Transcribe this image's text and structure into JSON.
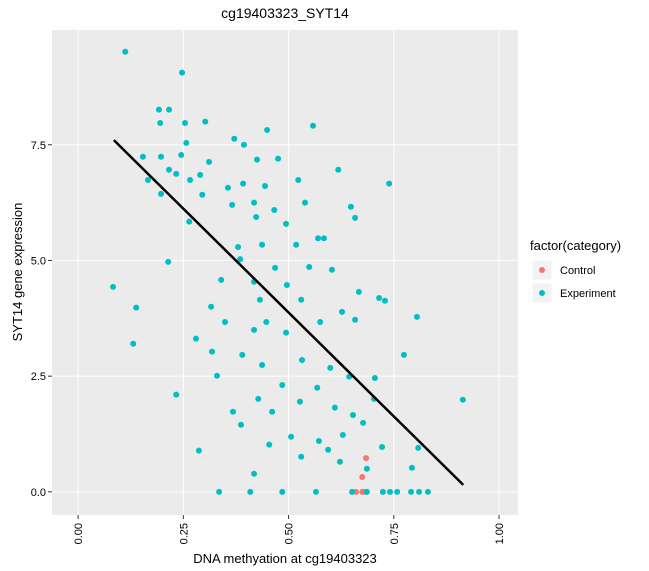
{
  "chart_data": {
    "type": "scatter",
    "title": "cg19403323_SYT14",
    "x_label": "DNA methyation at cg19403323",
    "y_label": "SYT14 gene expression",
    "xlim": [
      -0.062,
      1.045
    ],
    "ylim": [
      -0.5,
      9.98
    ],
    "xticks": [
      {
        "value": 0,
        "label": "0.00"
      },
      {
        "value": 0.25,
        "label": "0.25"
      },
      {
        "value": 0.5,
        "label": "0.50"
      },
      {
        "value": 0.75,
        "label": "0.75"
      },
      {
        "value": 1,
        "label": "1.00"
      }
    ],
    "yticks": [
      {
        "value": 0,
        "label": "0.0"
      },
      {
        "value": 2.5,
        "label": "2.5"
      },
      {
        "value": 5,
        "label": "5.0"
      },
      {
        "value": 7.5,
        "label": "7.5"
      }
    ],
    "grid": true,
    "legend_title": "factor(category)",
    "legend_position": "right",
    "series": [
      {
        "name": "Control",
        "color": "#F8766D",
        "x": [
          0.684,
          0.675,
          0.66,
          0.675,
          0.682
        ],
        "y": [
          0.73,
          0.32,
          0,
          0,
          0
        ]
      },
      {
        "name": "Experiment",
        "color": "#00BFC4",
        "x": [
          0.112,
          0.247,
          0.192,
          0.216,
          0.254,
          0.195,
          0.302,
          0.371,
          0.449,
          0.558,
          0.257,
          0.394,
          0.154,
          0.245,
          0.197,
          0.311,
          0.425,
          0.475,
          0.216,
          0.233,
          0.166,
          0.266,
          0.29,
          0.356,
          0.392,
          0.444,
          0.523,
          0.618,
          0.739,
          0.197,
          0.295,
          0.366,
          0.418,
          0.466,
          0.539,
          0.648,
          0.264,
          0.423,
          0.494,
          0.57,
          0.658,
          0.38,
          0.437,
          0.518,
          0.584,
          0.214,
          0.385,
          0.468,
          0.549,
          0.603,
          0.34,
          0.418,
          0.496,
          0.083,
          0.667,
          0.53,
          0.715,
          0.432,
          0.316,
          0.138,
          0.627,
          0.729,
          0.805,
          0.447,
          0.575,
          0.349,
          0.418,
          0.494,
          0.28,
          0.131,
          0.658,
          0.318,
          0.39,
          0.532,
          0.774,
          0.437,
          0.599,
          0.33,
          0.485,
          0.568,
          0.644,
          0.705,
          0.233,
          0.428,
          0.527,
          0.703,
          0.914,
          0.368,
          0.461,
          0.61,
          0.653,
          0.387,
          0.506,
          0.572,
          0.629,
          0.677,
          0.287,
          0.454,
          0.53,
          0.594,
          0.722,
          0.808,
          0.622,
          0.686,
          0.418,
          0.793,
          0.335,
          0.409,
          0.485,
          0.565,
          0.651,
          0.686,
          0.724,
          0.741,
          0.758,
          0.791,
          0.81,
          0.831
        ],
        "y": [
          9.51,
          9.06,
          8.26,
          8.26,
          7.97,
          7.97,
          8.0,
          7.63,
          7.82,
          7.91,
          7.54,
          7.5,
          7.24,
          7.28,
          7.24,
          7.13,
          7.18,
          7.2,
          6.96,
          6.87,
          6.74,
          6.74,
          6.85,
          6.57,
          6.66,
          6.61,
          6.74,
          6.96,
          6.66,
          6.44,
          6.42,
          6.2,
          6.25,
          6.09,
          6.25,
          6.16,
          5.84,
          5.94,
          5.79,
          5.48,
          5.92,
          5.29,
          5.34,
          5.34,
          5.48,
          4.97,
          5.03,
          4.84,
          4.86,
          4.8,
          4.58,
          4.54,
          4.47,
          4.43,
          4.32,
          4.15,
          4.19,
          4.15,
          4.0,
          3.98,
          3.89,
          4.13,
          3.78,
          3.67,
          3.67,
          3.67,
          3.5,
          3.44,
          3.31,
          3.2,
          3.72,
          3.03,
          2.96,
          2.85,
          2.96,
          2.74,
          2.68,
          2.51,
          2.31,
          2.25,
          2.49,
          2.46,
          2.1,
          2.01,
          1.95,
          2.01,
          1.99,
          1.73,
          1.73,
          1.82,
          1.66,
          1.45,
          1.19,
          1.1,
          1.23,
          1.49,
          0.89,
          1.02,
          0.76,
          0.91,
          0.97,
          0.95,
          0.65,
          0.5,
          0.39,
          0.52,
          0,
          0,
          0,
          0,
          0,
          0,
          0,
          0,
          0,
          0,
          0,
          0
        ]
      }
    ],
    "trend_line": {
      "color": "#000000",
      "x": [
        0.085,
        0.915
      ],
      "y": [
        7.6,
        0.15
      ]
    }
  }
}
